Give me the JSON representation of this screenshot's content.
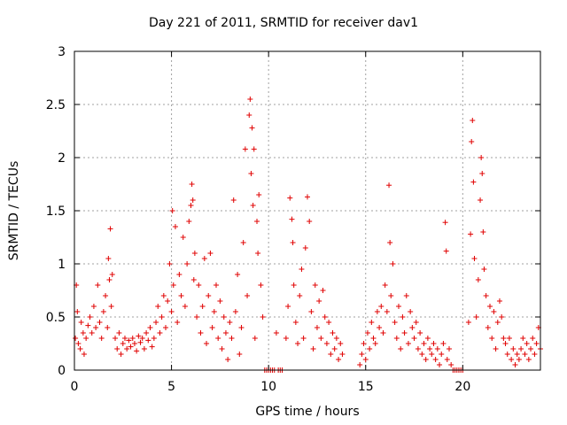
{
  "chart_data": {
    "type": "scatter",
    "title": "Day 221 of 2011, SRMTID for receiver dav1",
    "xlabel": "GPS time / hours",
    "ylabel": "SRMTID / TECUs",
    "xlim": [
      0,
      24
    ],
    "ylim": [
      0,
      3
    ],
    "xticks": [
      0,
      5,
      10,
      15,
      20
    ],
    "yticks": [
      0,
      0.5,
      1,
      1.5,
      2,
      2.5,
      3
    ],
    "xtick_labels": [
      "0",
      "5",
      "10",
      "15",
      "20"
    ],
    "ytick_labels": [
      "0",
      "0.5",
      "1",
      "1.5",
      "2",
      "2.5",
      "3"
    ],
    "grid": true,
    "marker": "+",
    "color": "#e00000",
    "series": [
      {
        "name": "dav1",
        "note": "approximate subset of visible points read from the figure",
        "points": [
          [
            0.05,
            0.3
          ],
          [
            0.1,
            0.8
          ],
          [
            0.15,
            0.55
          ],
          [
            0.2,
            0.25
          ],
          [
            0.3,
            0.2
          ],
          [
            0.35,
            0.45
          ],
          [
            0.45,
            0.35
          ],
          [
            0.5,
            0.15
          ],
          [
            0.6,
            0.3
          ],
          [
            0.7,
            0.42
          ],
          [
            0.8,
            0.5
          ],
          [
            0.9,
            0.35
          ],
          [
            1.0,
            0.6
          ],
          [
            1.1,
            0.4
          ],
          [
            1.2,
            0.8
          ],
          [
            1.3,
            0.45
          ],
          [
            1.4,
            0.3
          ],
          [
            1.5,
            0.55
          ],
          [
            1.6,
            0.7
          ],
          [
            1.7,
            0.4
          ],
          [
            1.75,
            1.05
          ],
          [
            1.8,
            0.85
          ],
          [
            1.85,
            1.33
          ],
          [
            1.9,
            0.6
          ],
          [
            1.95,
            0.9
          ],
          [
            2.1,
            0.3
          ],
          [
            2.2,
            0.2
          ],
          [
            2.3,
            0.35
          ],
          [
            2.4,
            0.15
          ],
          [
            2.5,
            0.25
          ],
          [
            2.6,
            0.3
          ],
          [
            2.7,
            0.2
          ],
          [
            2.8,
            0.28
          ],
          [
            2.9,
            0.22
          ],
          [
            3.0,
            0.3
          ],
          [
            3.1,
            0.25
          ],
          [
            3.2,
            0.18
          ],
          [
            3.3,
            0.32
          ],
          [
            3.4,
            0.26
          ],
          [
            3.5,
            0.3
          ],
          [
            3.6,
            0.2
          ],
          [
            3.7,
            0.35
          ],
          [
            3.8,
            0.28
          ],
          [
            3.9,
            0.4
          ],
          [
            4.0,
            0.22
          ],
          [
            4.1,
            0.3
          ],
          [
            4.2,
            0.45
          ],
          [
            4.3,
            0.6
          ],
          [
            4.4,
            0.35
          ],
          [
            4.5,
            0.5
          ],
          [
            4.6,
            0.7
          ],
          [
            4.7,
            0.4
          ],
          [
            4.8,
            0.65
          ],
          [
            4.9,
            1.0
          ],
          [
            5.0,
            0.55
          ],
          [
            5.05,
            1.5
          ],
          [
            5.1,
            0.8
          ],
          [
            5.2,
            1.35
          ],
          [
            5.3,
            0.45
          ],
          [
            5.4,
            0.9
          ],
          [
            5.5,
            0.7
          ],
          [
            5.6,
            1.25
          ],
          [
            5.7,
            0.6
          ],
          [
            5.8,
            1.0
          ],
          [
            5.9,
            1.4
          ],
          [
            6.0,
            1.55
          ],
          [
            6.05,
            1.75
          ],
          [
            6.1,
            1.6
          ],
          [
            6.15,
            0.85
          ],
          [
            6.2,
            1.1
          ],
          [
            6.3,
            0.5
          ],
          [
            6.4,
            0.8
          ],
          [
            6.5,
            0.35
          ],
          [
            6.6,
            0.6
          ],
          [
            6.7,
            1.05
          ],
          [
            6.8,
            0.25
          ],
          [
            6.9,
            0.7
          ],
          [
            7.0,
            1.1
          ],
          [
            7.1,
            0.4
          ],
          [
            7.2,
            0.55
          ],
          [
            7.3,
            0.8
          ],
          [
            7.4,
            0.3
          ],
          [
            7.5,
            0.65
          ],
          [
            7.6,
            0.2
          ],
          [
            7.7,
            0.5
          ],
          [
            7.8,
            0.35
          ],
          [
            7.9,
            0.1
          ],
          [
            8.0,
            0.45
          ],
          [
            8.1,
            0.3
          ],
          [
            8.2,
            1.6
          ],
          [
            8.3,
            0.55
          ],
          [
            8.4,
            0.9
          ],
          [
            8.5,
            0.15
          ],
          [
            8.6,
            0.4
          ],
          [
            8.7,
            1.2
          ],
          [
            8.8,
            2.08
          ],
          [
            8.9,
            0.7
          ],
          [
            9.0,
            2.4
          ],
          [
            9.05,
            2.55
          ],
          [
            9.1,
            1.85
          ],
          [
            9.15,
            2.28
          ],
          [
            9.2,
            1.55
          ],
          [
            9.25,
            2.08
          ],
          [
            9.3,
            0.3
          ],
          [
            9.4,
            1.4
          ],
          [
            9.45,
            1.1
          ],
          [
            9.5,
            1.65
          ],
          [
            9.6,
            0.8
          ],
          [
            9.7,
            0.5
          ],
          [
            9.8,
            0.0
          ],
          [
            9.9,
            0.0
          ],
          [
            10.0,
            0.0
          ],
          [
            10.1,
            0.0
          ],
          [
            10.2,
            0.0
          ],
          [
            10.3,
            0.0
          ],
          [
            10.4,
            0.35
          ],
          [
            10.5,
            0.0
          ],
          [
            10.6,
            0.0
          ],
          [
            10.7,
            0.0
          ],
          [
            10.9,
            0.3
          ],
          [
            11.0,
            0.6
          ],
          [
            11.1,
            1.62
          ],
          [
            11.2,
            1.42
          ],
          [
            11.25,
            1.2
          ],
          [
            11.3,
            0.8
          ],
          [
            11.4,
            0.45
          ],
          [
            11.5,
            0.25
          ],
          [
            11.6,
            0.7
          ],
          [
            11.7,
            0.95
          ],
          [
            11.8,
            0.3
          ],
          [
            11.9,
            1.15
          ],
          [
            12.0,
            1.63
          ],
          [
            12.1,
            1.4
          ],
          [
            12.2,
            0.55
          ],
          [
            12.3,
            0.2
          ],
          [
            12.4,
            0.8
          ],
          [
            12.5,
            0.4
          ],
          [
            12.6,
            0.65
          ],
          [
            12.7,
            0.3
          ],
          [
            12.8,
            0.75
          ],
          [
            12.9,
            0.5
          ],
          [
            13.0,
            0.25
          ],
          [
            13.1,
            0.45
          ],
          [
            13.2,
            0.15
          ],
          [
            13.3,
            0.35
          ],
          [
            13.4,
            0.2
          ],
          [
            13.5,
            0.3
          ],
          [
            13.6,
            0.1
          ],
          [
            13.7,
            0.25
          ],
          [
            13.8,
            0.15
          ],
          [
            14.7,
            0.05
          ],
          [
            14.8,
            0.15
          ],
          [
            14.9,
            0.25
          ],
          [
            15.0,
            0.1
          ],
          [
            15.1,
            0.35
          ],
          [
            15.2,
            0.2
          ],
          [
            15.3,
            0.45
          ],
          [
            15.4,
            0.3
          ],
          [
            15.5,
            0.25
          ],
          [
            15.6,
            0.55
          ],
          [
            15.7,
            0.4
          ],
          [
            15.8,
            0.6
          ],
          [
            15.9,
            0.35
          ],
          [
            16.0,
            0.8
          ],
          [
            16.1,
            0.55
          ],
          [
            16.2,
            1.74
          ],
          [
            16.25,
            1.2
          ],
          [
            16.3,
            0.7
          ],
          [
            16.4,
            1.0
          ],
          [
            16.5,
            0.45
          ],
          [
            16.6,
            0.3
          ],
          [
            16.7,
            0.6
          ],
          [
            16.8,
            0.2
          ],
          [
            16.9,
            0.5
          ],
          [
            17.0,
            0.35
          ],
          [
            17.1,
            0.7
          ],
          [
            17.2,
            0.25
          ],
          [
            17.3,
            0.55
          ],
          [
            17.4,
            0.4
          ],
          [
            17.5,
            0.3
          ],
          [
            17.6,
            0.45
          ],
          [
            17.7,
            0.2
          ],
          [
            17.8,
            0.35
          ],
          [
            17.9,
            0.15
          ],
          [
            18.0,
            0.25
          ],
          [
            18.1,
            0.1
          ],
          [
            18.2,
            0.3
          ],
          [
            18.3,
            0.2
          ],
          [
            18.4,
            0.15
          ],
          [
            18.5,
            0.25
          ],
          [
            18.6,
            0.1
          ],
          [
            18.7,
            0.2
          ],
          [
            18.8,
            0.05
          ],
          [
            18.9,
            0.15
          ],
          [
            19.0,
            0.25
          ],
          [
            19.1,
            1.39
          ],
          [
            19.15,
            1.12
          ],
          [
            19.2,
            0.1
          ],
          [
            19.3,
            0.2
          ],
          [
            19.4,
            0.05
          ],
          [
            19.5,
            0.0
          ],
          [
            19.6,
            0.0
          ],
          [
            19.7,
            0.0
          ],
          [
            19.8,
            0.0
          ],
          [
            19.9,
            0.0
          ],
          [
            20.0,
            0.0
          ],
          [
            20.3,
            0.45
          ],
          [
            20.4,
            1.28
          ],
          [
            20.45,
            2.15
          ],
          [
            20.5,
            2.35
          ],
          [
            20.55,
            1.77
          ],
          [
            20.6,
            1.05
          ],
          [
            20.7,
            0.5
          ],
          [
            20.8,
            0.85
          ],
          [
            20.9,
            1.6
          ],
          [
            20.95,
            2.0
          ],
          [
            21.0,
            1.85
          ],
          [
            21.05,
            1.3
          ],
          [
            21.1,
            0.95
          ],
          [
            21.2,
            0.7
          ],
          [
            21.3,
            0.4
          ],
          [
            21.4,
            0.6
          ],
          [
            21.5,
            0.3
          ],
          [
            21.6,
            0.55
          ],
          [
            21.7,
            0.2
          ],
          [
            21.8,
            0.45
          ],
          [
            21.9,
            0.65
          ],
          [
            22.0,
            0.5
          ],
          [
            22.1,
            0.3
          ],
          [
            22.2,
            0.25
          ],
          [
            22.3,
            0.15
          ],
          [
            22.4,
            0.3
          ],
          [
            22.5,
            0.1
          ],
          [
            22.6,
            0.2
          ],
          [
            22.7,
            0.05
          ],
          [
            22.8,
            0.15
          ],
          [
            22.9,
            0.1
          ],
          [
            23.0,
            0.2
          ],
          [
            23.1,
            0.3
          ],
          [
            23.2,
            0.15
          ],
          [
            23.3,
            0.25
          ],
          [
            23.4,
            0.1
          ],
          [
            23.5,
            0.2
          ],
          [
            23.6,
            0.3
          ],
          [
            23.7,
            0.15
          ],
          [
            23.8,
            0.25
          ],
          [
            23.9,
            0.4
          ],
          [
            24.0,
            0.2
          ]
        ]
      }
    ]
  }
}
